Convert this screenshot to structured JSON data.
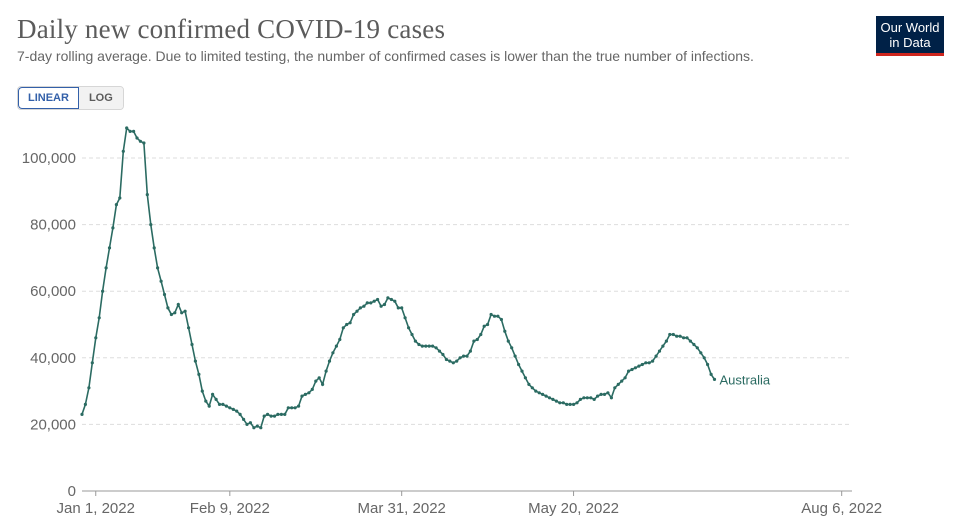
{
  "header": {
    "title": "Daily new confirmed COVID-19 cases",
    "subtitle": "7-day rolling average. Due to limited testing, the number of confirmed cases is lower than the true number of infections."
  },
  "logo": {
    "line1": "Our World",
    "line2": "in Data"
  },
  "scale_toggle": {
    "linear_label": "LINEAR",
    "log_label": "LOG",
    "active": "LINEAR"
  },
  "colors": {
    "series": "#2b6b62",
    "grid": "#dddddd",
    "axis": "#666666"
  },
  "chart_data": {
    "type": "line",
    "title": "Daily new confirmed COVID-19 cases",
    "xlabel": "",
    "ylabel": "",
    "x_domain_days": [
      -4,
      220
    ],
    "ylim": [
      0,
      110000
    ],
    "y_ticks": [
      0,
      20000,
      40000,
      60000,
      80000,
      100000
    ],
    "y_tick_labels": [
      "0",
      "20,000",
      "40,000",
      "60,000",
      "80,000",
      "100,000"
    ],
    "x_ticks": [
      {
        "day": 0,
        "label": "Jan 1, 2022"
      },
      {
        "day": 39,
        "label": "Feb 9, 2022"
      },
      {
        "day": 89,
        "label": "Mar 31, 2022"
      },
      {
        "day": 139,
        "label": "May 20, 2022"
      },
      {
        "day": 217,
        "label": "Aug 6, 2022"
      }
    ],
    "series": [
      {
        "name": "Australia",
        "points": [
          [
            -4,
            23000
          ],
          [
            -3,
            26000
          ],
          [
            -2,
            31000
          ],
          [
            -1,
            38500
          ],
          [
            0,
            46000
          ],
          [
            1,
            52000
          ],
          [
            2,
            60000
          ],
          [
            3,
            67000
          ],
          [
            4,
            73000
          ],
          [
            5,
            79000
          ],
          [
            6,
            86000
          ],
          [
            7,
            88000
          ],
          [
            8,
            102000
          ],
          [
            9,
            109000
          ],
          [
            10,
            108000
          ],
          [
            11,
            108000
          ],
          [
            12,
            106000
          ],
          [
            13,
            105000
          ],
          [
            14,
            104500
          ],
          [
            15,
            89000
          ],
          [
            16,
            80000
          ],
          [
            17,
            73000
          ],
          [
            18,
            67000
          ],
          [
            19,
            63000
          ],
          [
            20,
            59000
          ],
          [
            21,
            55000
          ],
          [
            22,
            53000
          ],
          [
            23,
            53500
          ],
          [
            24,
            56000
          ],
          [
            25,
            53500
          ],
          [
            26,
            54000
          ],
          [
            27,
            49000
          ],
          [
            28,
            44000
          ],
          [
            29,
            39000
          ],
          [
            30,
            35000
          ],
          [
            31,
            30000
          ],
          [
            32,
            27000
          ],
          [
            33,
            25500
          ],
          [
            34,
            29000
          ],
          [
            35,
            27500
          ],
          [
            36,
            26000
          ],
          [
            37,
            26000
          ],
          [
            38,
            25500
          ],
          [
            39,
            25000
          ],
          [
            40,
            24500
          ],
          [
            41,
            24000
          ],
          [
            42,
            23000
          ],
          [
            43,
            21500
          ],
          [
            44,
            20000
          ],
          [
            45,
            20500
          ],
          [
            46,
            19000
          ],
          [
            47,
            19500
          ],
          [
            48,
            19000
          ],
          [
            49,
            22500
          ],
          [
            50,
            23000
          ],
          [
            51,
            22500
          ],
          [
            52,
            22500
          ],
          [
            53,
            23000
          ],
          [
            54,
            23000
          ],
          [
            55,
            23000
          ],
          [
            56,
            25000
          ],
          [
            57,
            25000
          ],
          [
            58,
            25000
          ],
          [
            59,
            25500
          ],
          [
            60,
            28500
          ],
          [
            61,
            29000
          ],
          [
            62,
            29500
          ],
          [
            63,
            30500
          ],
          [
            64,
            33000
          ],
          [
            65,
            34000
          ],
          [
            66,
            32000
          ],
          [
            67,
            36000
          ],
          [
            68,
            39000
          ],
          [
            69,
            41500
          ],
          [
            70,
            43500
          ],
          [
            71,
            45500
          ],
          [
            72,
            49000
          ],
          [
            73,
            50000
          ],
          [
            74,
            50500
          ],
          [
            75,
            53000
          ],
          [
            76,
            54000
          ],
          [
            77,
            55000
          ],
          [
            78,
            55500
          ],
          [
            79,
            56500
          ],
          [
            80,
            56500
          ],
          [
            81,
            57000
          ],
          [
            82,
            57500
          ],
          [
            83,
            55500
          ],
          [
            84,
            56000
          ],
          [
            85,
            58000
          ],
          [
            86,
            57500
          ],
          [
            87,
            57000
          ],
          [
            88,
            55000
          ],
          [
            89,
            55000
          ],
          [
            90,
            52000
          ],
          [
            91,
            49000
          ],
          [
            92,
            47000
          ],
          [
            93,
            45000
          ],
          [
            94,
            44000
          ],
          [
            95,
            43500
          ],
          [
            96,
            43500
          ],
          [
            97,
            43500
          ],
          [
            98,
            43500
          ],
          [
            99,
            43000
          ],
          [
            100,
            42000
          ],
          [
            101,
            41000
          ],
          [
            102,
            39500
          ],
          [
            103,
            39000
          ],
          [
            104,
            38500
          ],
          [
            105,
            39000
          ],
          [
            106,
            40000
          ],
          [
            107,
            40500
          ],
          [
            108,
            40500
          ],
          [
            109,
            42000
          ],
          [
            110,
            45000
          ],
          [
            111,
            45500
          ],
          [
            112,
            47000
          ],
          [
            113,
            49500
          ],
          [
            114,
            50000
          ],
          [
            115,
            53000
          ],
          [
            116,
            52500
          ],
          [
            117,
            52500
          ],
          [
            118,
            51500
          ],
          [
            119,
            48000
          ],
          [
            120,
            45000
          ],
          [
            121,
            43000
          ],
          [
            122,
            40500
          ],
          [
            123,
            38000
          ],
          [
            124,
            36000
          ],
          [
            125,
            34000
          ],
          [
            126,
            32000
          ],
          [
            127,
            31000
          ],
          [
            128,
            30000
          ],
          [
            129,
            29500
          ],
          [
            130,
            29000
          ],
          [
            131,
            28500
          ],
          [
            132,
            28000
          ],
          [
            133,
            27500
          ],
          [
            134,
            27000
          ],
          [
            135,
            26500
          ],
          [
            136,
            26500
          ],
          [
            137,
            26000
          ],
          [
            138,
            26000
          ],
          [
            139,
            26000
          ],
          [
            140,
            26500
          ],
          [
            141,
            27500
          ],
          [
            142,
            28000
          ],
          [
            143,
            28000
          ],
          [
            144,
            28000
          ],
          [
            145,
            27500
          ],
          [
            146,
            28500
          ],
          [
            147,
            29000
          ],
          [
            148,
            29000
          ],
          [
            149,
            29500
          ],
          [
            150,
            28000
          ],
          [
            151,
            31000
          ],
          [
            152,
            32000
          ],
          [
            153,
            33000
          ],
          [
            154,
            34000
          ],
          [
            155,
            36000
          ],
          [
            156,
            36500
          ],
          [
            157,
            37000
          ],
          [
            158,
            37500
          ],
          [
            159,
            38000
          ],
          [
            160,
            38500
          ],
          [
            161,
            38500
          ],
          [
            162,
            39000
          ],
          [
            163,
            40500
          ],
          [
            164,
            42000
          ],
          [
            165,
            43500
          ],
          [
            166,
            45000
          ],
          [
            167,
            47000
          ],
          [
            168,
            47000
          ],
          [
            169,
            46500
          ],
          [
            170,
            46500
          ],
          [
            171,
            46000
          ],
          [
            172,
            46000
          ],
          [
            173,
            45000
          ],
          [
            174,
            44000
          ],
          [
            175,
            43000
          ],
          [
            176,
            41500
          ],
          [
            177,
            40000
          ],
          [
            178,
            38000
          ],
          [
            179,
            35000
          ],
          [
            180,
            33500
          ]
        ]
      }
    ]
  }
}
